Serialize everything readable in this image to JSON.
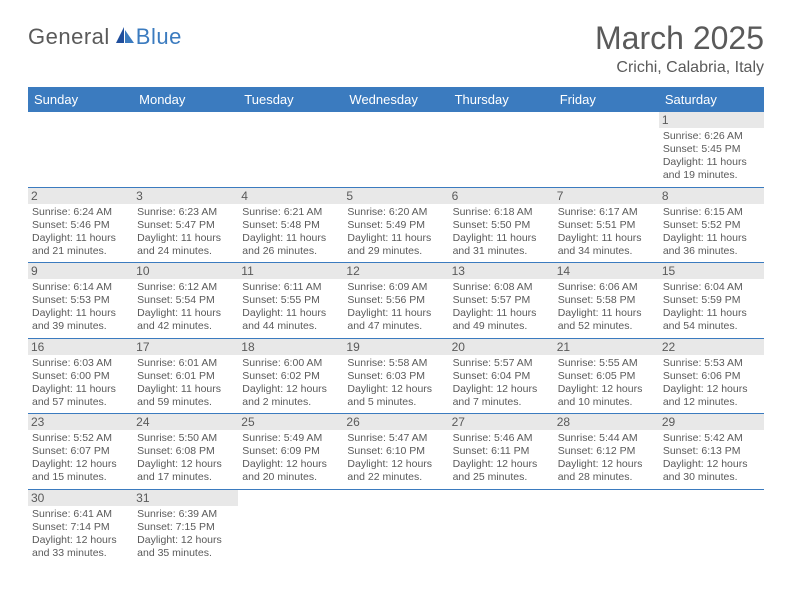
{
  "logo": {
    "general": "General",
    "blue": "Blue"
  },
  "title": "March 2025",
  "location": "Crichi, Calabria, Italy",
  "colors": {
    "header_bg": "#3b7bbf",
    "header_text": "#ffffff",
    "text": "#5a5a5a",
    "daynum_bg": "#e8e8e8",
    "border": "#3b7bbf",
    "page_bg": "#ffffff"
  },
  "typography": {
    "title_fontsize": 32,
    "location_fontsize": 16,
    "header_fontsize": 13,
    "daynum_fontsize": 12,
    "info_fontsize": 10.5
  },
  "weekdays": [
    "Sunday",
    "Monday",
    "Tuesday",
    "Wednesday",
    "Thursday",
    "Friday",
    "Saturday"
  ],
  "weeks": [
    [
      {
        "n": "",
        "sunrise": "",
        "sunset": "",
        "daylight": ""
      },
      {
        "n": "",
        "sunrise": "",
        "sunset": "",
        "daylight": ""
      },
      {
        "n": "",
        "sunrise": "",
        "sunset": "",
        "daylight": ""
      },
      {
        "n": "",
        "sunrise": "",
        "sunset": "",
        "daylight": ""
      },
      {
        "n": "",
        "sunrise": "",
        "sunset": "",
        "daylight": ""
      },
      {
        "n": "",
        "sunrise": "",
        "sunset": "",
        "daylight": ""
      },
      {
        "n": "1",
        "sunrise": "Sunrise: 6:26 AM",
        "sunset": "Sunset: 5:45 PM",
        "daylight": "Daylight: 11 hours and 19 minutes."
      }
    ],
    [
      {
        "n": "2",
        "sunrise": "Sunrise: 6:24 AM",
        "sunset": "Sunset: 5:46 PM",
        "daylight": "Daylight: 11 hours and 21 minutes."
      },
      {
        "n": "3",
        "sunrise": "Sunrise: 6:23 AM",
        "sunset": "Sunset: 5:47 PM",
        "daylight": "Daylight: 11 hours and 24 minutes."
      },
      {
        "n": "4",
        "sunrise": "Sunrise: 6:21 AM",
        "sunset": "Sunset: 5:48 PM",
        "daylight": "Daylight: 11 hours and 26 minutes."
      },
      {
        "n": "5",
        "sunrise": "Sunrise: 6:20 AM",
        "sunset": "Sunset: 5:49 PM",
        "daylight": "Daylight: 11 hours and 29 minutes."
      },
      {
        "n": "6",
        "sunrise": "Sunrise: 6:18 AM",
        "sunset": "Sunset: 5:50 PM",
        "daylight": "Daylight: 11 hours and 31 minutes."
      },
      {
        "n": "7",
        "sunrise": "Sunrise: 6:17 AM",
        "sunset": "Sunset: 5:51 PM",
        "daylight": "Daylight: 11 hours and 34 minutes."
      },
      {
        "n": "8",
        "sunrise": "Sunrise: 6:15 AM",
        "sunset": "Sunset: 5:52 PM",
        "daylight": "Daylight: 11 hours and 36 minutes."
      }
    ],
    [
      {
        "n": "9",
        "sunrise": "Sunrise: 6:14 AM",
        "sunset": "Sunset: 5:53 PM",
        "daylight": "Daylight: 11 hours and 39 minutes."
      },
      {
        "n": "10",
        "sunrise": "Sunrise: 6:12 AM",
        "sunset": "Sunset: 5:54 PM",
        "daylight": "Daylight: 11 hours and 42 minutes."
      },
      {
        "n": "11",
        "sunrise": "Sunrise: 6:11 AM",
        "sunset": "Sunset: 5:55 PM",
        "daylight": "Daylight: 11 hours and 44 minutes."
      },
      {
        "n": "12",
        "sunrise": "Sunrise: 6:09 AM",
        "sunset": "Sunset: 5:56 PM",
        "daylight": "Daylight: 11 hours and 47 minutes."
      },
      {
        "n": "13",
        "sunrise": "Sunrise: 6:08 AM",
        "sunset": "Sunset: 5:57 PM",
        "daylight": "Daylight: 11 hours and 49 minutes."
      },
      {
        "n": "14",
        "sunrise": "Sunrise: 6:06 AM",
        "sunset": "Sunset: 5:58 PM",
        "daylight": "Daylight: 11 hours and 52 minutes."
      },
      {
        "n": "15",
        "sunrise": "Sunrise: 6:04 AM",
        "sunset": "Sunset: 5:59 PM",
        "daylight": "Daylight: 11 hours and 54 minutes."
      }
    ],
    [
      {
        "n": "16",
        "sunrise": "Sunrise: 6:03 AM",
        "sunset": "Sunset: 6:00 PM",
        "daylight": "Daylight: 11 hours and 57 minutes."
      },
      {
        "n": "17",
        "sunrise": "Sunrise: 6:01 AM",
        "sunset": "Sunset: 6:01 PM",
        "daylight": "Daylight: 11 hours and 59 minutes."
      },
      {
        "n": "18",
        "sunrise": "Sunrise: 6:00 AM",
        "sunset": "Sunset: 6:02 PM",
        "daylight": "Daylight: 12 hours and 2 minutes."
      },
      {
        "n": "19",
        "sunrise": "Sunrise: 5:58 AM",
        "sunset": "Sunset: 6:03 PM",
        "daylight": "Daylight: 12 hours and 5 minutes."
      },
      {
        "n": "20",
        "sunrise": "Sunrise: 5:57 AM",
        "sunset": "Sunset: 6:04 PM",
        "daylight": "Daylight: 12 hours and 7 minutes."
      },
      {
        "n": "21",
        "sunrise": "Sunrise: 5:55 AM",
        "sunset": "Sunset: 6:05 PM",
        "daylight": "Daylight: 12 hours and 10 minutes."
      },
      {
        "n": "22",
        "sunrise": "Sunrise: 5:53 AM",
        "sunset": "Sunset: 6:06 PM",
        "daylight": "Daylight: 12 hours and 12 minutes."
      }
    ],
    [
      {
        "n": "23",
        "sunrise": "Sunrise: 5:52 AM",
        "sunset": "Sunset: 6:07 PM",
        "daylight": "Daylight: 12 hours and 15 minutes."
      },
      {
        "n": "24",
        "sunrise": "Sunrise: 5:50 AM",
        "sunset": "Sunset: 6:08 PM",
        "daylight": "Daylight: 12 hours and 17 minutes."
      },
      {
        "n": "25",
        "sunrise": "Sunrise: 5:49 AM",
        "sunset": "Sunset: 6:09 PM",
        "daylight": "Daylight: 12 hours and 20 minutes."
      },
      {
        "n": "26",
        "sunrise": "Sunrise: 5:47 AM",
        "sunset": "Sunset: 6:10 PM",
        "daylight": "Daylight: 12 hours and 22 minutes."
      },
      {
        "n": "27",
        "sunrise": "Sunrise: 5:46 AM",
        "sunset": "Sunset: 6:11 PM",
        "daylight": "Daylight: 12 hours and 25 minutes."
      },
      {
        "n": "28",
        "sunrise": "Sunrise: 5:44 AM",
        "sunset": "Sunset: 6:12 PM",
        "daylight": "Daylight: 12 hours and 28 minutes."
      },
      {
        "n": "29",
        "sunrise": "Sunrise: 5:42 AM",
        "sunset": "Sunset: 6:13 PM",
        "daylight": "Daylight: 12 hours and 30 minutes."
      }
    ],
    [
      {
        "n": "30",
        "sunrise": "Sunrise: 6:41 AM",
        "sunset": "Sunset: 7:14 PM",
        "daylight": "Daylight: 12 hours and 33 minutes."
      },
      {
        "n": "31",
        "sunrise": "Sunrise: 6:39 AM",
        "sunset": "Sunset: 7:15 PM",
        "daylight": "Daylight: 12 hours and 35 minutes."
      },
      {
        "n": "",
        "sunrise": "",
        "sunset": "",
        "daylight": ""
      },
      {
        "n": "",
        "sunrise": "",
        "sunset": "",
        "daylight": ""
      },
      {
        "n": "",
        "sunrise": "",
        "sunset": "",
        "daylight": ""
      },
      {
        "n": "",
        "sunrise": "",
        "sunset": "",
        "daylight": ""
      },
      {
        "n": "",
        "sunrise": "",
        "sunset": "",
        "daylight": ""
      }
    ]
  ]
}
